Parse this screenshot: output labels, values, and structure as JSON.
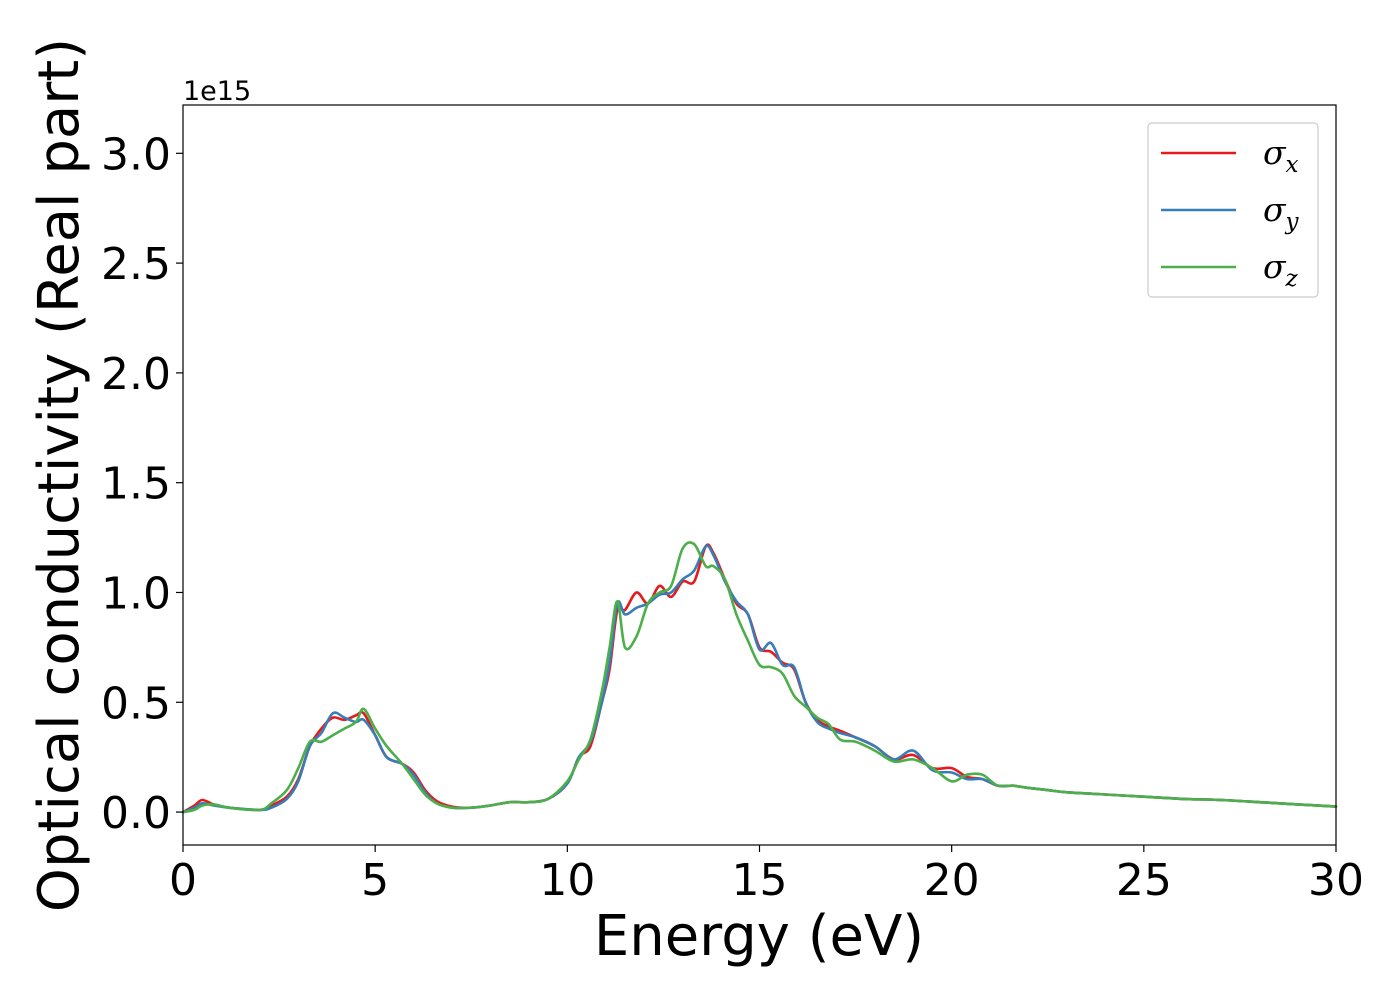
{
  "chart_data": {
    "type": "line",
    "xlabel": "Energy (eV)",
    "ylabel": "Optical conductivity (Real part)",
    "y_offset_label": "1e15",
    "xlim": [
      0,
      30
    ],
    "ylim": [
      -0.15,
      3.22
    ],
    "x_ticks": [
      0,
      5,
      10,
      15,
      20,
      25,
      30
    ],
    "x_tick_labels": [
      "0",
      "5",
      "10",
      "15",
      "20",
      "25",
      "30"
    ],
    "y_ticks": [
      0.0,
      0.5,
      1.0,
      1.5,
      2.0,
      2.5,
      3.0
    ],
    "y_tick_labels": [
      "0.0",
      "0.5",
      "1.0",
      "1.5",
      "2.0",
      "2.5",
      "3.0"
    ],
    "grid": false,
    "legend_position": "top-right",
    "series": [
      {
        "name": "σx",
        "legend_base": "σ",
        "legend_sub": "x",
        "color": "#e41a1c",
        "x": [
          0,
          0.3,
          0.5,
          0.8,
          1.2,
          2.0,
          2.3,
          2.7,
          3.0,
          3.3,
          3.6,
          3.9,
          4.2,
          4.5,
          4.7,
          5.0,
          5.3,
          5.7,
          6.0,
          6.3,
          6.6,
          7.0,
          7.5,
          8.0,
          8.5,
          9.0,
          9.5,
          10.0,
          10.3,
          10.6,
          10.9,
          11.1,
          11.3,
          11.5,
          11.8,
          12.1,
          12.4,
          12.7,
          13.0,
          13.3,
          13.6,
          13.8,
          14.1,
          14.4,
          14.7,
          15.0,
          15.3,
          15.6,
          15.9,
          16.2,
          16.5,
          16.8,
          17.1,
          17.5,
          18.0,
          18.5,
          19.0,
          19.5,
          20.0,
          20.4,
          20.8,
          21.2,
          21.6,
          22.0,
          22.5,
          23.0,
          24.0,
          25.0,
          26.0,
          27.0,
          28.0,
          29.0,
          30.0
        ],
        "y": [
          0.0,
          0.03,
          0.055,
          0.035,
          0.02,
          0.01,
          0.03,
          0.07,
          0.15,
          0.3,
          0.38,
          0.43,
          0.42,
          0.44,
          0.45,
          0.35,
          0.25,
          0.22,
          0.18,
          0.1,
          0.05,
          0.025,
          0.02,
          0.03,
          0.045,
          0.045,
          0.06,
          0.13,
          0.25,
          0.3,
          0.5,
          0.65,
          0.92,
          0.92,
          1.0,
          0.95,
          1.03,
          0.98,
          1.05,
          1.05,
          1.21,
          1.18,
          1.06,
          0.95,
          0.9,
          0.75,
          0.73,
          0.68,
          0.65,
          0.5,
          0.42,
          0.39,
          0.37,
          0.34,
          0.3,
          0.24,
          0.26,
          0.2,
          0.2,
          0.16,
          0.15,
          0.12,
          0.12,
          0.11,
          0.1,
          0.09,
          0.08,
          0.07,
          0.06,
          0.055,
          0.045,
          0.035,
          0.025
        ]
      },
      {
        "name": "σy",
        "legend_base": "σ",
        "legend_sub": "y",
        "color": "#377eb8",
        "x": [
          0,
          0.3,
          0.5,
          0.8,
          1.2,
          2.0,
          2.3,
          2.7,
          3.0,
          3.3,
          3.6,
          3.9,
          4.2,
          4.5,
          4.7,
          5.0,
          5.3,
          5.7,
          6.0,
          6.3,
          6.6,
          7.0,
          7.5,
          8.0,
          8.5,
          9.0,
          9.5,
          10.0,
          10.3,
          10.6,
          10.9,
          11.1,
          11.3,
          11.5,
          11.8,
          12.1,
          12.4,
          12.7,
          13.0,
          13.3,
          13.6,
          13.8,
          14.1,
          14.4,
          14.7,
          15.0,
          15.3,
          15.6,
          15.9,
          16.2,
          16.5,
          16.8,
          17.1,
          17.5,
          18.0,
          18.5,
          19.0,
          19.5,
          20.0,
          20.4,
          20.8,
          21.2,
          21.6,
          22.0,
          22.5,
          23.0,
          24.0,
          25.0,
          26.0,
          27.0,
          28.0,
          29.0,
          30.0
        ],
        "y": [
          0.0,
          0.02,
          0.04,
          0.03,
          0.02,
          0.01,
          0.02,
          0.06,
          0.14,
          0.3,
          0.36,
          0.45,
          0.43,
          0.41,
          0.42,
          0.35,
          0.25,
          0.22,
          0.17,
          0.09,
          0.04,
          0.02,
          0.02,
          0.03,
          0.045,
          0.045,
          0.06,
          0.13,
          0.25,
          0.32,
          0.5,
          0.68,
          0.95,
          0.9,
          0.93,
          0.95,
          0.99,
          1.0,
          1.06,
          1.1,
          1.21,
          1.17,
          1.05,
          0.96,
          0.9,
          0.74,
          0.77,
          0.67,
          0.66,
          0.5,
          0.41,
          0.38,
          0.36,
          0.34,
          0.3,
          0.24,
          0.28,
          0.19,
          0.18,
          0.15,
          0.15,
          0.12,
          0.12,
          0.11,
          0.1,
          0.09,
          0.08,
          0.07,
          0.06,
          0.055,
          0.045,
          0.035,
          0.025
        ]
      },
      {
        "name": "σz",
        "legend_base": "σ",
        "legend_sub": "z",
        "color": "#4daf4a",
        "x": [
          0,
          0.3,
          0.5,
          0.8,
          1.2,
          2.0,
          2.3,
          2.7,
          3.0,
          3.3,
          3.6,
          3.9,
          4.2,
          4.5,
          4.7,
          5.0,
          5.3,
          5.7,
          6.0,
          6.3,
          6.6,
          7.0,
          7.5,
          8.0,
          8.5,
          9.0,
          9.5,
          10.0,
          10.3,
          10.6,
          10.9,
          11.1,
          11.3,
          11.5,
          11.8,
          12.1,
          12.4,
          12.7,
          13.0,
          13.3,
          13.6,
          13.8,
          14.1,
          14.4,
          14.7,
          15.0,
          15.3,
          15.6,
          15.9,
          16.2,
          16.5,
          16.8,
          17.1,
          17.5,
          18.0,
          18.5,
          19.0,
          19.5,
          20.0,
          20.4,
          20.8,
          21.2,
          21.6,
          22.0,
          22.5,
          23.0,
          24.0,
          25.0,
          26.0,
          27.0,
          28.0,
          29.0,
          30.0
        ],
        "y": [
          0.0,
          0.01,
          0.03,
          0.035,
          0.02,
          0.01,
          0.04,
          0.1,
          0.2,
          0.32,
          0.32,
          0.35,
          0.38,
          0.41,
          0.47,
          0.38,
          0.3,
          0.22,
          0.15,
          0.08,
          0.04,
          0.02,
          0.02,
          0.03,
          0.045,
          0.045,
          0.06,
          0.14,
          0.24,
          0.33,
          0.55,
          0.75,
          0.96,
          0.75,
          0.8,
          0.95,
          1.0,
          1.03,
          1.2,
          1.22,
          1.12,
          1.12,
          1.06,
          0.9,
          0.78,
          0.67,
          0.66,
          0.63,
          0.53,
          0.48,
          0.43,
          0.4,
          0.33,
          0.32,
          0.28,
          0.23,
          0.24,
          0.2,
          0.14,
          0.17,
          0.17,
          0.12,
          0.12,
          0.11,
          0.1,
          0.09,
          0.08,
          0.07,
          0.06,
          0.055,
          0.045,
          0.035,
          0.025
        ]
      }
    ]
  }
}
